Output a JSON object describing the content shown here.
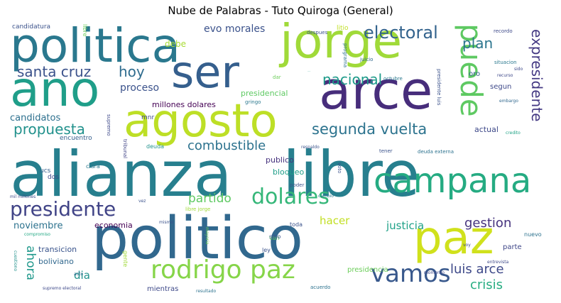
{
  "chart_data": {
    "type": "wordcloud",
    "title": "Nube de Palabras - Tuto Quiroga (General)",
    "words": [
      {
        "text": "alianza",
        "weight": 100,
        "color": "#277f8e",
        "orientation": "horizontal"
      },
      {
        "text": "libre",
        "weight": 100,
        "color": "#277f8e",
        "orientation": "horizontal"
      },
      {
        "text": "politico",
        "weight": 92,
        "color": "#31688e",
        "orientation": "horizontal"
      },
      {
        "text": "politica",
        "weight": 72,
        "color": "#2a788e",
        "orientation": "horizontal"
      },
      {
        "text": "ano",
        "weight": 72,
        "color": "#1f9e89",
        "orientation": "horizontal"
      },
      {
        "text": "jorge",
        "weight": 74,
        "color": "#a0da39",
        "orientation": "horizontal"
      },
      {
        "text": "arce",
        "weight": 78,
        "color": "#472d7b",
        "orientation": "horizontal"
      },
      {
        "text": "agosto",
        "weight": 70,
        "color": "#bddf26",
        "orientation": "horizontal"
      },
      {
        "text": "ser",
        "weight": 68,
        "color": "#355f8d",
        "orientation": "horizontal"
      },
      {
        "text": "paz",
        "weight": 66,
        "color": "#d0e11c",
        "orientation": "horizontal"
      },
      {
        "text": "campana",
        "weight": 52,
        "color": "#25ab82",
        "orientation": "horizontal"
      },
      {
        "text": "puede",
        "weight": 44,
        "color": "#5ec962",
        "orientation": "vertical"
      },
      {
        "text": "rodrigo paz",
        "weight": 38,
        "color": "#86d549",
        "orientation": "horizontal"
      },
      {
        "text": "vamos",
        "weight": 34,
        "color": "#38588c",
        "orientation": "horizontal"
      },
      {
        "text": "presidente",
        "weight": 30,
        "color": "#414487",
        "orientation": "horizontal"
      },
      {
        "text": "dolares",
        "weight": 32,
        "color": "#35b779",
        "orientation": "horizontal"
      },
      {
        "text": "electoral",
        "weight": 24,
        "color": "#33638d",
        "orientation": "horizontal"
      },
      {
        "text": "segunda vuelta",
        "weight": 22,
        "color": "#2c738e",
        "orientation": "horizontal"
      },
      {
        "text": "propuesta",
        "weight": 20,
        "color": "#21918c",
        "orientation": "horizontal"
      },
      {
        "text": "nacional",
        "weight": 20,
        "color": "#1e9b8a",
        "orientation": "horizontal"
      },
      {
        "text": "expresidente",
        "weight": 20,
        "color": "#443983",
        "orientation": "vertical"
      },
      {
        "text": "santa cruz",
        "weight": 20,
        "color": "#3b528b",
        "orientation": "horizontal"
      },
      {
        "text": "plan",
        "weight": 20,
        "color": "#2b758e",
        "orientation": "horizontal"
      },
      {
        "text": "hoy",
        "weight": 20,
        "color": "#2f6c8e",
        "orientation": "horizontal"
      },
      {
        "text": "combustible",
        "weight": 18,
        "color": "#2c728e",
        "orientation": "horizontal"
      },
      {
        "text": "luis arce",
        "weight": 18,
        "color": "#3e4989",
        "orientation": "horizontal"
      },
      {
        "text": "crisis",
        "weight": 18,
        "color": "#27ad81",
        "orientation": "horizontal"
      },
      {
        "text": "gestion",
        "weight": 18,
        "color": "#46337e",
        "orientation": "horizontal"
      },
      {
        "text": "partido",
        "weight": 17,
        "color": "#5ec962",
        "orientation": "horizontal"
      },
      {
        "text": "ahora",
        "weight": 17,
        "color": "#1f988b",
        "orientation": "vertical"
      },
      {
        "text": "justicia",
        "weight": 15,
        "color": "#1fa188",
        "orientation": "horizontal"
      },
      {
        "text": "hacer",
        "weight": 15,
        "color": "#c2df23",
        "orientation": "horizontal"
      },
      {
        "text": "dia",
        "weight": 15,
        "color": "#20928c",
        "orientation": "horizontal"
      },
      {
        "text": "evo morales",
        "weight": 14,
        "color": "#3b528b",
        "orientation": "horizontal"
      },
      {
        "text": "proceso",
        "weight": 14,
        "color": "#3b528b",
        "orientation": "horizontal"
      },
      {
        "text": "candidatos",
        "weight": 13,
        "color": "#2d708e",
        "orientation": "horizontal"
      },
      {
        "text": "noviembre",
        "weight": 13,
        "color": "#2c728e",
        "orientation": "horizontal"
      },
      {
        "text": "debe",
        "weight": 12,
        "color": "#a8db34",
        "orientation": "horizontal"
      },
      {
        "text": "nacional",
        "weight": 12,
        "color": "#1e9b8a",
        "orientation": "horizontal"
      },
      {
        "text": "presidencial",
        "weight": 11,
        "color": "#5ec962",
        "orientation": "horizontal"
      },
      {
        "text": "millones dolares",
        "weight": 11,
        "color": "#440154",
        "orientation": "horizontal"
      },
      {
        "text": "economia",
        "weight": 11,
        "color": "#440154",
        "orientation": "horizontal"
      },
      {
        "text": "transicion",
        "weight": 11,
        "color": "#3a548c",
        "orientation": "horizontal"
      },
      {
        "text": "boliviano",
        "weight": 11,
        "color": "#31688e",
        "orientation": "horizontal"
      },
      {
        "text": "publico",
        "weight": 11,
        "color": "#46327e",
        "orientation": "horizontal"
      },
      {
        "text": "bloqueo",
        "weight": 11,
        "color": "#1f9e89",
        "orientation": "horizontal"
      },
      {
        "text": "actual",
        "weight": 11,
        "color": "#3e4989",
        "orientation": "horizontal"
      },
      {
        "text": "segun",
        "weight": 10,
        "color": "#3e4989",
        "orientation": "horizontal"
      },
      {
        "text": "oro",
        "weight": 10,
        "color": "#355f8d",
        "orientation": "horizontal"
      },
      {
        "text": "parte",
        "weight": 10,
        "color": "#3f4788",
        "orientation": "horizontal"
      },
      {
        "text": "mientras",
        "weight": 10,
        "color": "#3e4989",
        "orientation": "horizontal"
      },
      {
        "text": "presidencia",
        "weight": 10,
        "color": "#6ccd5a",
        "orientation": "horizontal"
      },
      {
        "text": "candidatura",
        "weight": 9,
        "color": "#3b528b",
        "orientation": "horizontal"
      },
      {
        "text": "litio",
        "weight": 9,
        "color": "#c0df25",
        "orientation": "horizontal"
      },
      {
        "text": "encuentro",
        "weight": 9,
        "color": "#355f8d",
        "orientation": "horizontal"
      },
      {
        "text": "mnr",
        "weight": 9,
        "color": "#3e4989",
        "orientation": "horizontal"
      },
      {
        "text": "ucs",
        "weight": 9,
        "color": "#355f8d",
        "orientation": "horizontal"
      },
      {
        "text": "dos",
        "weight": 9,
        "color": "#3e4989",
        "orientation": "horizontal"
      },
      {
        "text": "clara",
        "weight": 8,
        "color": "#2a788e",
        "orientation": "horizontal"
      },
      {
        "text": "deuda",
        "weight": 8,
        "color": "#21918c",
        "orientation": "horizontal"
      },
      {
        "text": "van",
        "weight": 8,
        "color": "#5ec962",
        "orientation": "horizontal"
      },
      {
        "text": "toda",
        "weight": 8,
        "color": "#3b528b",
        "orientation": "horizontal"
      },
      {
        "text": "ley",
        "weight": 8,
        "color": "#3b528b",
        "orientation": "horizontal"
      },
      {
        "text": "sino",
        "weight": 8,
        "color": "#3b528b",
        "orientation": "horizontal"
      },
      {
        "text": "nuevo",
        "weight": 8,
        "color": "#2c728e",
        "orientation": "horizontal"
      },
      {
        "text": "gente",
        "weight": 8,
        "color": "#a0da39",
        "orientation": "vertical"
      },
      {
        "text": "libre",
        "weight": 8,
        "color": "#6ccd5a",
        "orientation": "vertical"
      },
      {
        "text": "despues",
        "weight": 7,
        "color": "#3b528b",
        "orientation": "horizontal"
      },
      {
        "text": "programa",
        "weight": 7,
        "color": "#2c728e",
        "orientation": "vertical"
      },
      {
        "text": "juicio",
        "weight": 7,
        "color": "#31688e",
        "orientation": "horizontal"
      },
      {
        "text": "recordo",
        "weight": 7,
        "color": "#3e4989",
        "orientation": "horizontal"
      },
      {
        "text": "situacion",
        "weight": 7,
        "color": "#2a788e",
        "orientation": "horizontal"
      },
      {
        "text": "sido",
        "weight": 6,
        "color": "#3e4989",
        "orientation": "horizontal"
      },
      {
        "text": "recurso",
        "weight": 6,
        "color": "#3e4989",
        "orientation": "horizontal"
      },
      {
        "text": "embargo",
        "weight": 6,
        "color": "#31688e",
        "orientation": "horizontal"
      },
      {
        "text": "credito",
        "weight": 6,
        "color": "#20a386",
        "orientation": "horizontal"
      },
      {
        "text": "octubre",
        "weight": 7,
        "color": "#2a788e",
        "orientation": "horizontal"
      },
      {
        "text": "presidente luis",
        "weight": 7,
        "color": "#3b528b",
        "orientation": "vertical"
      },
      {
        "text": "dar",
        "weight": 7,
        "color": "#6ccd5a",
        "orientation": "horizontal"
      },
      {
        "text": "gringo",
        "weight": 7,
        "color": "#2a788e",
        "orientation": "horizontal"
      },
      {
        "text": "supremo",
        "weight": 7,
        "color": "#3e4989",
        "orientation": "vertical"
      },
      {
        "text": "tribunal",
        "weight": 7,
        "color": "#414487",
        "orientation": "vertical"
      },
      {
        "text": "respaldo",
        "weight": 6,
        "color": "#3b528b",
        "orientation": "horizontal"
      },
      {
        "text": "tener",
        "weight": 7,
        "color": "#3b528b",
        "orientation": "horizontal"
      },
      {
        "text": "deuda externa",
        "weight": 7,
        "color": "#2c728e",
        "orientation": "horizontal"
      },
      {
        "text": "voto",
        "weight": 7,
        "color": "#3b528b",
        "orientation": "vertical"
      },
      {
        "text": "poder",
        "weight": 7,
        "color": "#3b528b",
        "orientation": "horizontal"
      },
      {
        "text": "cambio",
        "weight": 6,
        "color": "#2a788e",
        "orientation": "horizontal"
      },
      {
        "text": "libre jorge",
        "weight": 7,
        "color": "#a0da39",
        "orientation": "horizontal"
      },
      {
        "text": "mil millones",
        "weight": 6,
        "color": "#3e4989",
        "orientation": "horizontal"
      },
      {
        "text": "vez",
        "weight": 6,
        "color": "#3b528b",
        "orientation": "horizontal"
      },
      {
        "text": "mismo",
        "weight": 6,
        "color": "#3b528b",
        "orientation": "horizontal"
      },
      {
        "text": "compromiso",
        "weight": 6,
        "color": "#22a884",
        "orientation": "horizontal"
      },
      {
        "text": "mayoria",
        "weight": 6,
        "color": "#6ccd5a",
        "orientation": "vertical"
      },
      {
        "text": "cuestiono",
        "weight": 6,
        "color": "#21918c",
        "orientation": "vertical"
      },
      {
        "text": "acto",
        "weight": 6,
        "color": "#31688e",
        "orientation": "horizontal"
      },
      {
        "text": "supremo electoral",
        "weight": 6,
        "color": "#3e4989",
        "orientation": "horizontal"
      },
      {
        "text": "resultado",
        "weight": 6,
        "color": "#2c728e",
        "orientation": "horizontal"
      },
      {
        "text": "acuerdo",
        "weight": 7,
        "color": "#2c728e",
        "orientation": "horizontal"
      },
      {
        "text": "momento",
        "weight": 6,
        "color": "#3e4989",
        "orientation": "horizontal"
      },
      {
        "text": "voy",
        "weight": 6,
        "color": "#3e4989",
        "orientation": "horizontal"
      },
      {
        "text": "entrevista",
        "weight": 6,
        "color": "#3e4989",
        "orientation": "horizontal"
      }
    ]
  }
}
